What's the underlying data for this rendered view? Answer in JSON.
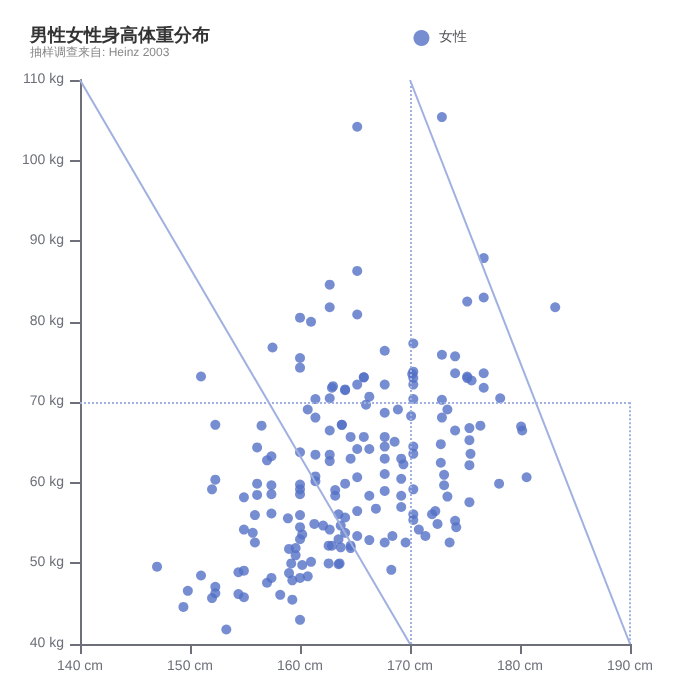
{
  "chart_data": {
    "type": "scatter",
    "title": "男性女性身高体重分布",
    "subtitle": "抽样调查来自: Heinz 2003",
    "xlim": [
      140,
      190
    ],
    "ylim": [
      40,
      110
    ],
    "xticks": [
      {
        "value": 140,
        "label": "140 cm"
      },
      {
        "value": 150,
        "label": "150 cm"
      },
      {
        "value": 160,
        "label": "160 cm"
      },
      {
        "value": 170,
        "label": "170 cm"
      },
      {
        "value": 180,
        "label": "180 cm"
      },
      {
        "value": 190,
        "label": "190 cm"
      }
    ],
    "yticks": [
      {
        "value": 40,
        "label": "40 kg"
      },
      {
        "value": 50,
        "label": "50 kg"
      },
      {
        "value": 60,
        "label": "60 kg"
      },
      {
        "value": 70,
        "label": "70 kg"
      },
      {
        "value": 80,
        "label": "80 kg"
      },
      {
        "value": 90,
        "label": "90 kg"
      },
      {
        "value": 100,
        "label": "100 kg"
      },
      {
        "value": 110,
        "label": "110 kg"
      }
    ],
    "grid": false,
    "legend": "top right",
    "ref_lines": [
      {
        "axis": "x",
        "value": 170,
        "color": "#a0b0e0",
        "line_style": "dotted"
      },
      {
        "axis": "y",
        "value": 70,
        "color": "#a0b0e0",
        "line_style": "dotted"
      }
    ],
    "series": [
      {
        "name": "女性",
        "color": "#5470c6",
        "marker": "circle",
        "x": [
          165.2,
          172.9,
          176.7,
          175.2,
          176.7,
          183.2,
          165.2,
          162.7,
          162.7,
          165.2,
          160.0,
          161.0,
          157.5,
          160.0,
          160.0,
          151.0,
          167.7,
          170.3,
          172.9,
          174.1,
          174.1,
          175.2,
          175.2,
          176.7,
          170.2,
          165.8,
          152.3,
          156.5,
          156.1,
          157.0,
          157.4,
          152.3,
          152.0,
          154.9,
          156.1,
          156.1,
          157.4,
          157.4,
          160.0,
          160.0,
          160.0,
          160.0,
          161.4,
          161.4,
          161.4,
          162.7,
          162.7,
          162.7,
          163.8,
          163.0,
          164.1,
          161.4,
          162.7,
          160.7,
          161.4,
          155.9,
          157.4,
          158.9,
          160.0,
          154.9,
          155.7,
          155.9,
          160.0,
          160.2,
          160.0,
          159.6,
          161.3,
          162.1,
          162.7,
          163.7,
          162.6,
          163.7,
          159.2,
          160.2,
          161.0,
          162.6,
          163.6,
          147.0,
          151.0,
          149.8,
          149.4,
          152.3,
          152.0,
          152.3,
          154.4,
          154.9,
          154.4,
          154.9,
          157.0,
          157.4,
          158.2,
          159.0,
          159.3,
          160.0,
          160.7,
          159.3,
          160.0,
          153.3,
          159.0,
          159.6,
          163.5,
          164.6,
          175.6,
          176.7,
          178.2,
          170.3,
          170.3,
          170.3,
          172.9,
          173.4,
          172.9,
          170.3,
          170.1,
          167.7,
          167.7,
          168.9,
          168.6,
          167.7,
          167.7,
          167.7,
          167.7,
          167.7,
          169.2,
          169.4,
          169.2,
          169.2,
          169.2,
          170.3,
          170.3,
          170.3,
          170.3,
          170.3,
          172.8,
          172.8,
          173.1,
          173.1,
          173.4,
          174.1,
          175.4,
          175.4,
          175.5,
          175.4,
          176.4,
          175.4,
          178.1,
          180.1,
          180.2,
          180.6,
          172.3,
          172.0,
          172.5,
          174.1,
          174.2,
          173.6,
          171.4,
          170.8,
          168.3,
          169.6,
          168.4,
          167.7,
          166.3,
          165.2,
          164.1,
          166.3,
          166.9,
          165.2,
          164.1,
          163.5,
          165.2,
          164.1,
          163.2,
          163.2,
          164.6,
          165.2,
          164.6,
          163.8,
          165.8,
          166.3,
          162.9,
          164.1,
          165.2,
          165.8,
          166.0,
          166.3,
          162.9,
          163.5,
          164.6
        ],
        "values": [
          104.2,
          105.4,
          87.9,
          82.5,
          83.0,
          81.8,
          86.3,
          84.6,
          81.8,
          80.9,
          80.5,
          80.0,
          76.8,
          75.5,
          74.3,
          73.2,
          76.4,
          77.3,
          75.9,
          75.7,
          73.6,
          73.2,
          73.0,
          73.6,
          73.5,
          73.1,
          67.2,
          67.1,
          64.4,
          62.8,
          63.3,
          60.4,
          59.2,
          58.2,
          59.9,
          58.5,
          59.7,
          58.6,
          63.8,
          59.8,
          59.2,
          58.6,
          63.5,
          60.8,
          60.2,
          63.5,
          62.7,
          66.5,
          67.2,
          72.0,
          71.6,
          70.4,
          70.5,
          69.1,
          68.1,
          56.0,
          56.2,
          55.6,
          56.0,
          54.2,
          53.8,
          52.6,
          54.5,
          53.6,
          53.0,
          51.9,
          54.9,
          54.7,
          54.2,
          54.7,
          52.2,
          52.0,
          50.0,
          49.8,
          50.2,
          50.0,
          50.0,
          49.6,
          48.5,
          46.6,
          44.6,
          47.1,
          45.7,
          46.3,
          48.9,
          49.1,
          46.2,
          45.8,
          47.6,
          48.2,
          46.1,
          48.8,
          47.9,
          48.2,
          48.4,
          45.5,
          43.0,
          41.8,
          51.8,
          51.0,
          53.0,
          52.2,
          72.7,
          71.8,
          70.5,
          73.8,
          73.0,
          72.2,
          70.3,
          69.1,
          68.1,
          70.4,
          68.3,
          72.2,
          68.7,
          69.1,
          65.1,
          65.7,
          64.5,
          63.0,
          61.1,
          59.0,
          63.0,
          62.3,
          60.5,
          58.4,
          57.0,
          63.6,
          64.5,
          59.2,
          56.1,
          55.4,
          64.8,
          62.5,
          61.0,
          59.7,
          58.3,
          66.5,
          66.8,
          65.3,
          63.6,
          62.2,
          67.1,
          57.6,
          59.9,
          67.0,
          66.5,
          60.7,
          56.5,
          56.1,
          54.9,
          55.3,
          54.5,
          52.6,
          53.4,
          54.2,
          49.2,
          52.6,
          53.4,
          52.6,
          52.9,
          53.4,
          53.8,
          58.4,
          56.8,
          56.5,
          55.7,
          56.1,
          60.7,
          59.9,
          59.1,
          58.4,
          63.0,
          64.2,
          65.7,
          67.2,
          65.7,
          64.2,
          71.8,
          71.5,
          72.2,
          73.1,
          69.7,
          70.7,
          52.2,
          49.9,
          51.9
        ]
      },
      {
        "type": "line",
        "color": "#a0b0e0",
        "line_style": "solid",
        "marker": "none",
        "x": [
          140,
          170
        ],
        "values": [
          110,
          40
        ]
      },
      {
        "type": "line",
        "color": "#a0b0e0",
        "line_style": "solid",
        "marker": "none",
        "x": [
          170,
          190
        ],
        "values": [
          110,
          40
        ]
      },
      {
        "type": "line",
        "color": "#a0b0e0",
        "line_style": "dotted",
        "marker": "none",
        "x": [
          190,
          190
        ],
        "values": [
          70,
          40
        ]
      }
    ]
  }
}
